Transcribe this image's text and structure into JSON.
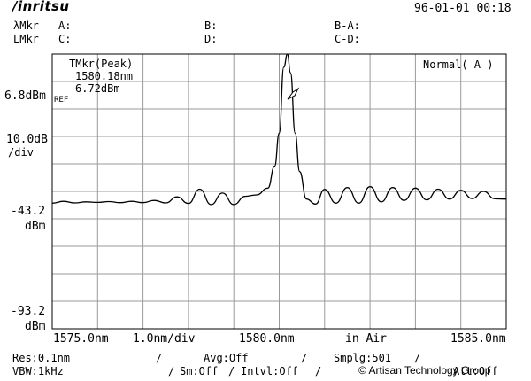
{
  "header": {
    "brand": "/inritsu",
    "datetime": "96-01-01 00:18",
    "lmkr_row1": "λMkr",
    "lmkr_row2": "LMkr",
    "markers": {
      "a": "A:",
      "b": "B:",
      "ba": "B-A:",
      "c": "C:",
      "d": "D:",
      "cd": "C-D:"
    }
  },
  "screen": {
    "tmkr_title": "TMkr(Peak)",
    "tmkr_wavelength": "1580.18nm",
    "tmkr_level": "6.72dBm",
    "mode": "Normal( A )",
    "ref_level": "6.8dBm",
    "ref_tag": "REF",
    "scale_value": "10.0dB",
    "scale_unit": "/div",
    "mid_level": "-43.2",
    "mid_unit": "dBm",
    "bottom_level": "-93.2",
    "bottom_unit": "dBm"
  },
  "x_axis": {
    "start": "1575.0nm",
    "span_per_div": "1.0nm/div",
    "center": "1580.0nm",
    "medium": "in Air",
    "stop": "1585.0nm"
  },
  "status": {
    "res": "Res:0.1nm",
    "avg": "Avg:Off",
    "smplg": "Smplg:501",
    "vbw": "VBW:1kHz",
    "sm": "Sm:Off",
    "intvl": "Intvl:Off",
    "att": "Att:Off"
  },
  "watermark": "© Artisan Technology Group",
  "chart_data": {
    "type": "line",
    "xlabel": "",
    "ylabel": "",
    "xlim": [
      1575.0,
      1585.0
    ],
    "ylim": [
      -93.2,
      6.8
    ],
    "grid": true,
    "series": [
      {
        "x": [
          1575.0,
          1575.25,
          1575.5,
          1575.75,
          1576.0,
          1576.25,
          1576.5,
          1576.75,
          1577.0,
          1577.25,
          1577.5,
          1577.75,
          1578.0,
          1578.25,
          1578.5,
          1578.75,
          1579.0,
          1579.25,
          1579.5,
          1579.75,
          1579.9,
          1580.0,
          1580.1,
          1580.18,
          1580.25,
          1580.35,
          1580.45,
          1580.6,
          1580.8,
          1581.0,
          1581.25,
          1581.5,
          1581.75,
          1582.0,
          1582.25,
          1582.5,
          1582.75,
          1583.0,
          1583.25,
          1583.5,
          1583.75,
          1584.0,
          1584.25,
          1584.5,
          1584.75,
          1585.0
        ],
        "y": [
          -47.5,
          -46.8,
          -47.4,
          -47.0,
          -47.2,
          -46.9,
          -47.3,
          -46.8,
          -47.3,
          -46.5,
          -47.4,
          -45.2,
          -47.6,
          -42.4,
          -48.0,
          -43.8,
          -48.0,
          -45.0,
          -44.5,
          -42.0,
          -34.0,
          -22.0,
          2.0,
          6.72,
          0.0,
          -22.0,
          -36.0,
          -46.0,
          -47.8,
          -42.5,
          -47.5,
          -41.8,
          -47.5,
          -41.5,
          -47.0,
          -41.8,
          -46.5,
          -42.0,
          -46.3,
          -42.4,
          -46.0,
          -42.8,
          -45.8,
          -43.2,
          -45.9,
          -46.0
        ]
      }
    ]
  }
}
